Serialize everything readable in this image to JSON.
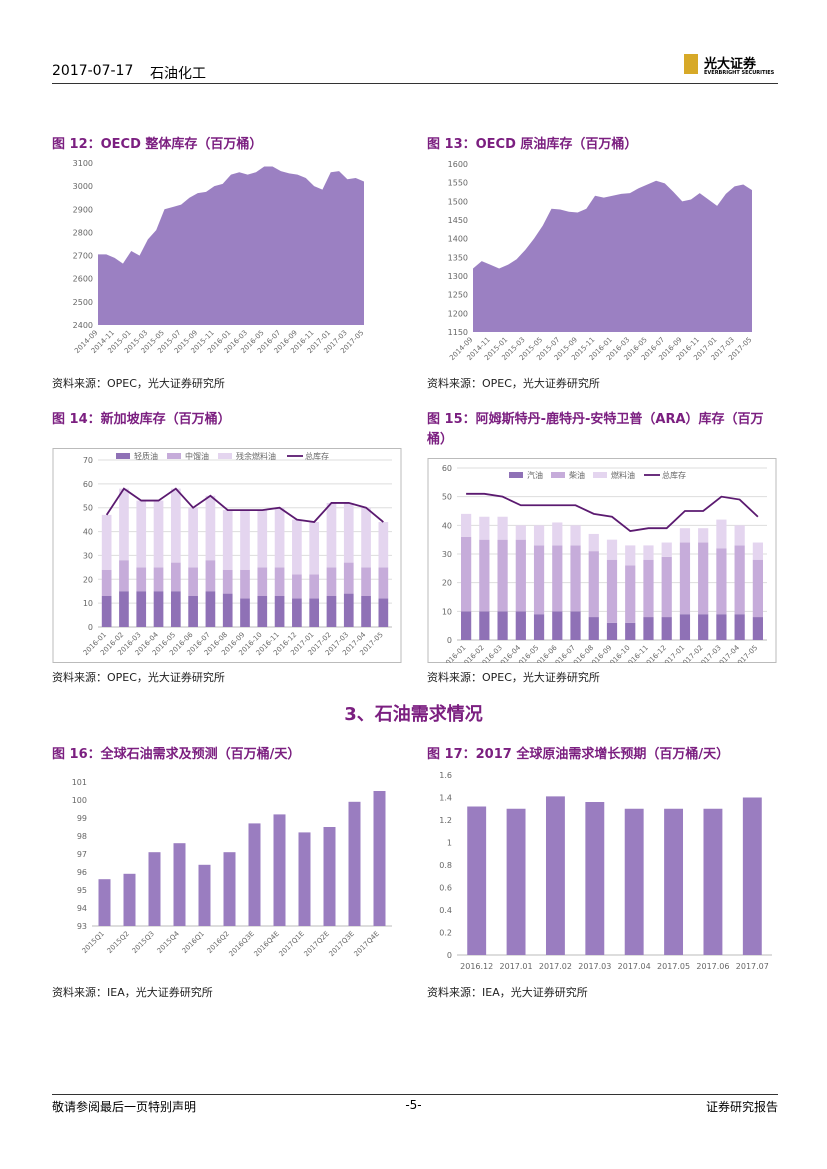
{
  "header": {
    "date": "2017-07-17",
    "sector": "石油化工",
    "logo": "光大证券",
    "logo_en": "EVERBRIGHT SECURITIES"
  },
  "section_title": "3、石油需求情况",
  "footer": {
    "left": "敬请参阅最后一页特别声明",
    "page": "-5-",
    "right": "证券研究报告"
  },
  "chart_data": [
    {
      "type": "area",
      "title": "图 12：OECD 整体库存（百万桶）",
      "source": "资料来源：OPEC，光大证券研究所",
      "color": "#9b80c2",
      "categories": [
        "2014-09",
        null,
        "2014-11",
        null,
        "2015-01",
        null,
        "2015-03",
        null,
        "2015-05",
        null,
        "2015-07",
        null,
        "2015-09",
        null,
        "2015-11",
        null,
        "2016-01",
        null,
        "2016-03",
        null,
        "2016-05",
        null,
        "2016-07",
        null,
        "2016-09",
        null,
        "2016-11",
        null,
        "2017-01",
        null,
        "2017-03",
        null,
        "2017-05"
      ],
      "values": [
        2705,
        2705,
        2690,
        2665,
        2720,
        2700,
        2770,
        2810,
        2900,
        2910,
        2920,
        2950,
        2970,
        2975,
        3000,
        3010,
        3050,
        3060,
        3050,
        3060,
        3085,
        3085,
        3065,
        3055,
        3050,
        3035,
        3000,
        2985,
        3060,
        3065,
        3030,
        3035,
        3020
      ],
      "ylim": [
        2400,
        3100
      ],
      "yticks": [
        2400,
        2500,
        2600,
        2700,
        2800,
        2900,
        3000,
        3100
      ],
      "grid": false
    },
    {
      "type": "area",
      "title": "图 13：OECD 原油库存（百万桶）",
      "source": "资料来源：OPEC，光大证券研究所",
      "color": "#9b80c2",
      "categories": [
        "2014-09",
        null,
        "2014-11",
        null,
        "2015-01",
        null,
        "2015-03",
        null,
        "2015-05",
        null,
        "2015-07",
        null,
        "2015-09",
        null,
        "2015-11",
        null,
        "2016-01",
        null,
        "2016-03",
        null,
        "2016-05",
        null,
        "2016-07",
        null,
        "2016-09",
        null,
        "2016-11",
        null,
        "2017-01",
        null,
        "2017-03",
        null,
        "2017-05"
      ],
      "values": [
        1320,
        1340,
        1330,
        1320,
        1330,
        1345,
        1370,
        1400,
        1435,
        1480,
        1478,
        1472,
        1470,
        1480,
        1515,
        1510,
        1515,
        1520,
        1522,
        1535,
        1545,
        1555,
        1548,
        1525,
        1500,
        1505,
        1522,
        1505,
        1488,
        1520,
        1540,
        1545,
        1530
      ],
      "ylim": [
        1150,
        1600
      ],
      "yticks": [
        1150,
        1200,
        1250,
        1300,
        1350,
        1400,
        1450,
        1500,
        1550,
        1600
      ],
      "grid": false
    },
    {
      "type": "combo",
      "title": "图 14：新加坡库存（百万桶）",
      "source": "资料来源：OPEC，光大证券研究所",
      "categories": [
        "2016-01",
        "2016-02",
        "2016-03",
        "2016-04",
        "2016-05",
        "2016-06",
        "2016-07",
        "2016-08",
        "2016-09",
        "2016-10",
        "2016-11",
        "2016-12",
        "2017-01",
        "2017-02",
        "2017-03",
        "2017-04",
        "2017-05"
      ],
      "series": [
        {
          "name": "轻质油",
          "kind": "bar",
          "color": "#8f71b6",
          "values": [
            13,
            15,
            15,
            15,
            15,
            13,
            15,
            14,
            12,
            13,
            13,
            12,
            12,
            13,
            14,
            13,
            12
          ]
        },
        {
          "name": "中馏油",
          "kind": "bar",
          "color": "#c6acda",
          "values": [
            11,
            13,
            10,
            10,
            12,
            12,
            13,
            10,
            12,
            12,
            12,
            10,
            10,
            12,
            13,
            12,
            13
          ]
        },
        {
          "name": "残余燃料油",
          "kind": "bar",
          "color": "#e4d5ef",
          "values": [
            23,
            30,
            28,
            28,
            31,
            25,
            27,
            25,
            25,
            24,
            25,
            23,
            22,
            27,
            25,
            25,
            19
          ]
        },
        {
          "name": "总库存",
          "kind": "line",
          "color": "#5b1a70",
          "values": [
            47,
            58,
            53,
            53,
            58,
            50,
            55,
            49,
            49,
            49,
            50,
            45,
            44,
            52,
            52,
            50,
            44
          ]
        }
      ],
      "ylim": [
        0,
        70
      ],
      "yticks": [
        0,
        10,
        20,
        30,
        40,
        50,
        60,
        70
      ],
      "grid": true
    },
    {
      "type": "combo",
      "title": "图 15：阿姆斯特丹-鹿特丹-安特卫普（ARA）库存（百万桶）",
      "source": "资料来源：OPEC，光大证券研究所",
      "categories": [
        "2016-01",
        "2016-02",
        "2016-03",
        "2016-04",
        "2016-05",
        "2016-06",
        "2016-07",
        "2016-08",
        "2016-09",
        "2016-10",
        "2016-11",
        "2016-12",
        "2017-01",
        "2017-02",
        "2017-03",
        "2017-04",
        "2017-05"
      ],
      "series": [
        {
          "name": "汽油",
          "kind": "bar",
          "color": "#8f71b6",
          "values": [
            10,
            10,
            10,
            10,
            9,
            10,
            10,
            8,
            6,
            6,
            8,
            8,
            9,
            9,
            9,
            9,
            8
          ]
        },
        {
          "name": "柴油",
          "kind": "bar",
          "color": "#c6acda",
          "values": [
            26,
            25,
            25,
            25,
            24,
            23,
            23,
            23,
            22,
            20,
            20,
            21,
            25,
            25,
            23,
            24,
            20
          ]
        },
        {
          "name": "燃料油",
          "kind": "bar",
          "color": "#e4d5ef",
          "values": [
            8,
            8,
            8,
            5,
            7,
            8,
            7,
            6,
            7,
            7,
            5,
            5,
            5,
            5,
            10,
            7,
            6
          ]
        },
        {
          "name": "总库存",
          "kind": "line",
          "color": "#5b1a70",
          "values": [
            51,
            51,
            50,
            47,
            47,
            47,
            47,
            44,
            43,
            38,
            39,
            39,
            45,
            45,
            50,
            49,
            43
          ]
        }
      ],
      "ylim": [
        0,
        60
      ],
      "yticks": [
        0,
        10,
        20,
        30,
        40,
        50,
        60
      ],
      "grid": true
    },
    {
      "type": "bar",
      "title": "图 16：全球石油需求及预测（百万桶/天）",
      "source": "资料来源：IEA，光大证券研究所",
      "color": "#9a7dc0",
      "categories": [
        "2015Q1",
        "2015Q2",
        "2015Q3",
        "2015Q4",
        "2016Q1",
        "2016Q2",
        "2016Q3E",
        "2016Q4E",
        "2017Q1E",
        "2017Q2E",
        "2017Q3E",
        "2017Q4E"
      ],
      "values": [
        95.6,
        95.9,
        97.1,
        97.6,
        96.4,
        97.1,
        98.7,
        99.2,
        98.2,
        98.5,
        99.9,
        100.5
      ],
      "ylim": [
        93,
        101
      ],
      "yticks": [
        93,
        94,
        95,
        96,
        97,
        98,
        99,
        100,
        101
      ],
      "grid": false
    },
    {
      "type": "bar",
      "title": "图 17：2017 全球原油需求增长预期（百万桶/天）",
      "source": "资料来源：IEA，光大证券研究所",
      "color": "#9a7dc0",
      "categories": [
        "2016.12",
        "2017.01",
        "2017.02",
        "2017.03",
        "2017.04",
        "2017.05",
        "2017.06",
        "2017.07"
      ],
      "values": [
        1.32,
        1.3,
        1.41,
        1.36,
        1.3,
        1.3,
        1.3,
        1.4
      ],
      "ylim": [
        0,
        1.6
      ],
      "yticks": [
        0,
        0.2,
        0.4,
        0.6,
        0.8,
        1,
        1.2,
        1.4,
        1.6
      ],
      "grid": false
    }
  ]
}
